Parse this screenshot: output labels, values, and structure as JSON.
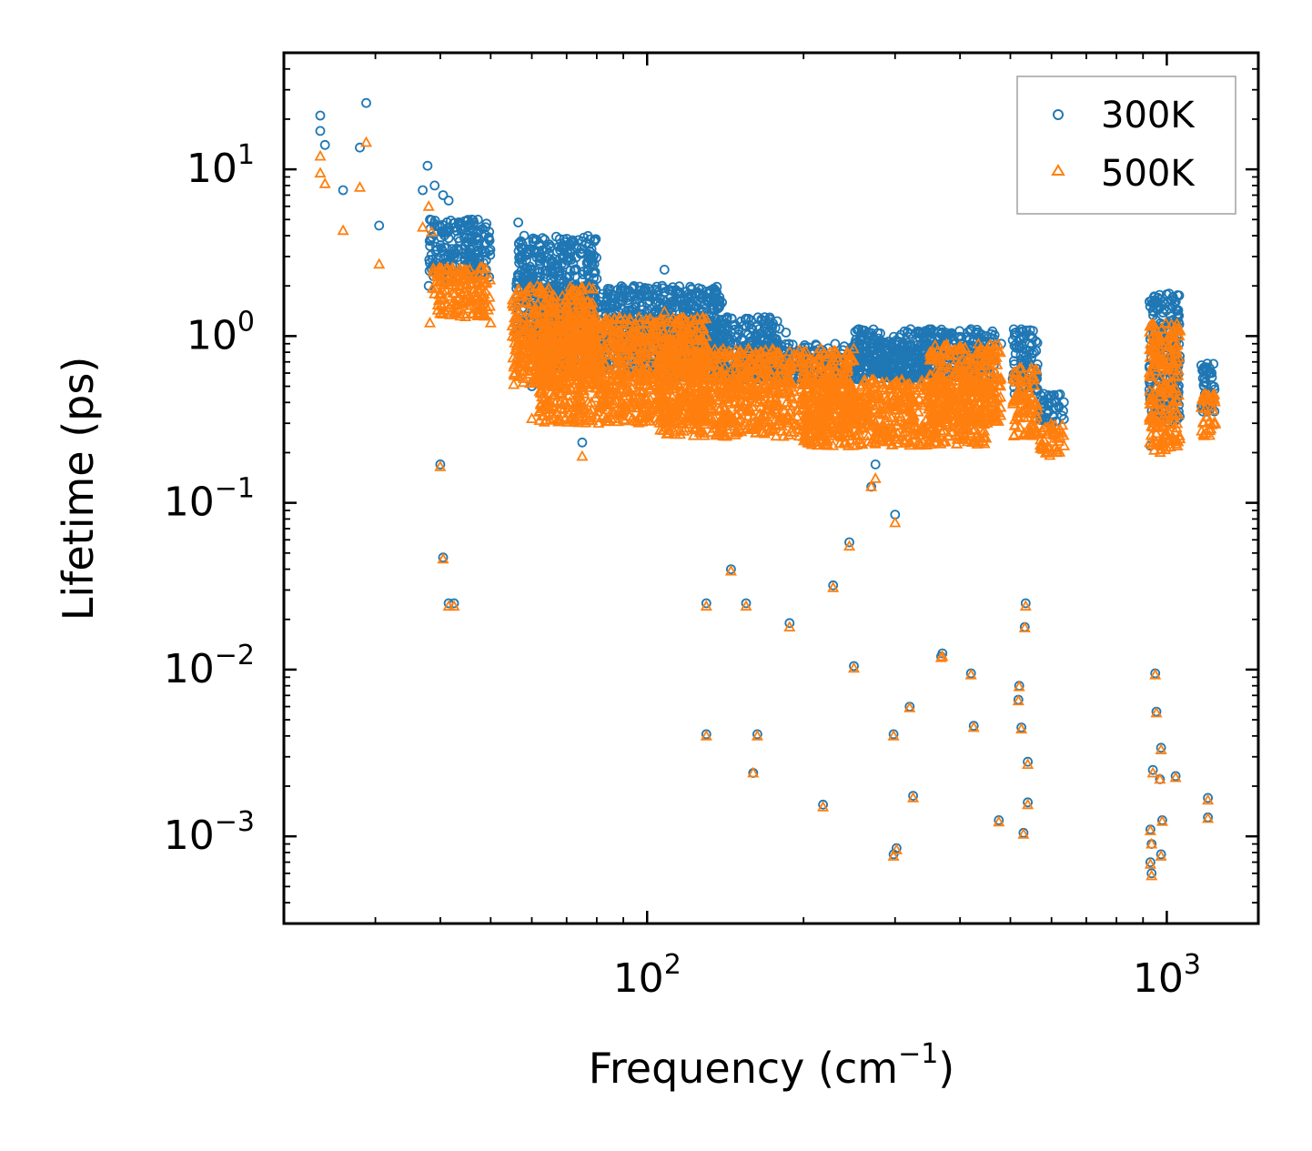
{
  "chart_data": {
    "type": "scatter",
    "x_scale": "log",
    "y_scale": "log",
    "xlim": [
      20,
      1500
    ],
    "ylim": [
      0.0003,
      50
    ],
    "xlabel": "Frequency (cm",
    "xlabel_sup": "−1",
    "xlabel_end": ")",
    "ylabel": "Lifetime (ps)",
    "xticks": [
      {
        "value": 100,
        "base": "10",
        "exp": "2"
      },
      {
        "value": 1000,
        "base": "10",
        "exp": "3"
      }
    ],
    "yticks": [
      {
        "value": 10,
        "base": "10",
        "exp": "1"
      },
      {
        "value": 1,
        "base": "10",
        "exp": "0"
      },
      {
        "value": 0.1,
        "base": "10",
        "exp": "−1"
      },
      {
        "value": 0.01,
        "base": "10",
        "exp": "−2"
      },
      {
        "value": 0.001,
        "base": "10",
        "exp": "−3"
      }
    ],
    "legend_position": "top-right",
    "series": [
      {
        "name": "300K",
        "marker": "circle",
        "color": "#1f77b4",
        "points": [
          [
            23.5,
            21
          ],
          [
            23.5,
            17
          ],
          [
            24.0,
            14
          ],
          [
            26.0,
            7.5
          ],
          [
            28.0,
            13.5
          ],
          [
            28.8,
            25
          ],
          [
            30.5,
            4.6
          ],
          [
            37.0,
            7.5
          ],
          [
            37.8,
            10.5
          ],
          [
            38.2,
            5.0
          ],
          [
            39.0,
            8.0
          ],
          [
            40.5,
            7.0
          ],
          [
            41.5,
            6.5
          ],
          [
            38.0,
            2.0
          ],
          [
            40.0,
            0.17
          ],
          [
            40.5,
            0.047
          ],
          [
            41.5,
            0.025
          ],
          [
            42.5,
            0.025
          ],
          [
            46.0,
            5.0
          ],
          [
            49.0,
            2.5
          ],
          [
            56.5,
            4.8
          ],
          [
            58.0,
            4.0
          ],
          [
            60.0,
            0.5
          ],
          [
            61.0,
            3.8
          ],
          [
            62.0,
            0.65
          ],
          [
            64.5,
            0.75
          ],
          [
            69.0,
            3.0
          ],
          [
            73.0,
            2.0
          ],
          [
            75.0,
            0.23
          ],
          [
            77.0,
            1.6
          ],
          [
            80.0,
            2.2
          ],
          [
            90.0,
            1.7
          ],
          [
            100.0,
            1.8
          ],
          [
            108.0,
            2.5
          ],
          [
            110.0,
            1.9
          ],
          [
            113.0,
            1.6
          ],
          [
            118.0,
            1.5
          ],
          [
            126.0,
            1.4
          ],
          [
            145.0,
            0.3
          ],
          [
            162.0,
            0.9
          ],
          [
            185.0,
            1.05
          ],
          [
            200.0,
            0.75
          ],
          [
            230.0,
            0.72
          ],
          [
            260.0,
            0.7
          ],
          [
            270.0,
            0.125
          ],
          [
            275.0,
            0.17
          ],
          [
            300.0,
            0.085
          ],
          [
            330.0,
            0.82
          ],
          [
            370.0,
            0.6
          ],
          [
            400.0,
            0.65
          ],
          [
            420.0,
            1.1
          ],
          [
            450.0,
            1.0
          ],
          [
            480.0,
            0.9
          ],
          [
            530.0,
            1.0
          ],
          [
            545.0,
            0.9
          ],
          [
            580.0,
            0.45
          ],
          [
            600.0,
            0.4
          ],
          [
            620.0,
            0.38
          ],
          [
            130.0,
            0.025
          ],
          [
            145.0,
            0.04
          ],
          [
            155.0,
            0.025
          ],
          [
            188.0,
            0.019
          ],
          [
            228.0,
            0.032
          ],
          [
            250.0,
            0.0105
          ],
          [
            245.0,
            0.058
          ],
          [
            130.0,
            0.0041
          ],
          [
            160.0,
            0.0024
          ],
          [
            163.0,
            0.0041
          ],
          [
            218.0,
            0.00155
          ],
          [
            298.0,
            0.0041
          ],
          [
            298.0,
            0.00078
          ],
          [
            302.0,
            0.00085
          ],
          [
            320.0,
            0.006
          ],
          [
            325.0,
            0.00175
          ],
          [
            370.0,
            0.0125
          ],
          [
            368.0,
            0.012
          ],
          [
            420.0,
            0.0095
          ],
          [
            425.0,
            0.0046
          ],
          [
            475.0,
            0.00125
          ],
          [
            520.0,
            0.008
          ],
          [
            518.0,
            0.0066
          ],
          [
            525.0,
            0.0045
          ],
          [
            535.0,
            0.025
          ],
          [
            533.0,
            0.018
          ],
          [
            540.0,
            0.0028
          ],
          [
            540.0,
            0.0016
          ],
          [
            530.0,
            0.00105
          ],
          [
            940.0,
            0.0025
          ],
          [
            950.0,
            0.0095
          ],
          [
            955.0,
            0.0056
          ],
          [
            930.0,
            0.0011
          ],
          [
            935.0,
            0.0009
          ],
          [
            930.0,
            0.0007
          ],
          [
            935.0,
            0.0006
          ],
          [
            975.0,
            0.0034
          ],
          [
            970.0,
            0.0022
          ],
          [
            980.0,
            0.00125
          ],
          [
            975.0,
            0.00078
          ],
          [
            1040.0,
            0.0023
          ],
          [
            1200.0,
            0.0017
          ],
          [
            1200.0,
            0.0013
          ],
          [
            930.0,
            0.22
          ],
          [
            960.0,
            1.6
          ],
          [
            1010.0,
            1.8
          ],
          [
            1190.0,
            0.65
          ],
          [
            1220.0,
            0.6
          ]
        ],
        "clusters": [
          {
            "x": [
              38.0,
              50.0
            ],
            "y": [
              2.2,
              5.0
            ]
          },
          {
            "x": [
              56.0,
              80.0
            ],
            "y": [
              1.0,
              4.0
            ]
          },
          {
            "x": [
              62.0,
              140.0
            ],
            "y": [
              0.6,
              2.0
            ]
          },
          {
            "x": [
              110.0,
              180.0
            ],
            "y": [
              0.55,
              1.3
            ]
          },
          {
            "x": [
              150.0,
              350.0
            ],
            "y": [
              0.55,
              0.9
            ]
          },
          {
            "x": [
              250.0,
              470.0
            ],
            "y": [
              0.55,
              1.1
            ]
          },
          {
            "x": [
              505.0,
              565.0
            ],
            "y": [
              0.45,
              1.1
            ]
          },
          {
            "x": [
              570.0,
              635.0
            ],
            "y": [
              0.3,
              0.45
            ]
          },
          {
            "x": [
              925.0,
              1060.0
            ],
            "y": [
              0.3,
              1.8
            ]
          },
          {
            "x": [
              1165.0,
              1240.0
            ],
            "y": [
              0.35,
              0.7
            ]
          }
        ]
      },
      {
        "name": "500K",
        "marker": "triangle",
        "color": "#ff7f0e",
        "points": [
          [
            23.5,
            12
          ],
          [
            23.5,
            9.5
          ],
          [
            24.0,
            8.2
          ],
          [
            26.0,
            4.3
          ],
          [
            28.0,
            7.8
          ],
          [
            28.8,
            14.5
          ],
          [
            30.5,
            2.7
          ],
          [
            37.0,
            4.5
          ],
          [
            38.0,
            6.0
          ],
          [
            38.5,
            4.2
          ],
          [
            38.2,
            1.2
          ],
          [
            40.0,
            0.165
          ],
          [
            40.5,
            0.046
          ],
          [
            41.5,
            0.024
          ],
          [
            42.5,
            0.024
          ],
          [
            49.0,
            1.5
          ],
          [
            50.0,
            1.2
          ],
          [
            56.0,
            1.6
          ],
          [
            60.0,
            0.32
          ],
          [
            62.0,
            0.35
          ],
          [
            64.0,
            0.38
          ],
          [
            75.0,
            0.19
          ],
          [
            73.0,
            1.0
          ],
          [
            90.0,
            1.1
          ],
          [
            100.0,
            1.2
          ],
          [
            108.0,
            1.4
          ],
          [
            300.0,
            0.076
          ],
          [
            270.0,
            0.125
          ],
          [
            275.0,
            0.14
          ],
          [
            130.0,
            0.024
          ],
          [
            145.0,
            0.039
          ],
          [
            155.0,
            0.024
          ],
          [
            188.0,
            0.018
          ],
          [
            228.0,
            0.031
          ],
          [
            250.0,
            0.0102
          ],
          [
            245.0,
            0.055
          ],
          [
            130.0,
            0.004
          ],
          [
            160.0,
            0.0024
          ],
          [
            163.0,
            0.004
          ],
          [
            218.0,
            0.0015
          ],
          [
            298.0,
            0.004
          ],
          [
            298.0,
            0.00076
          ],
          [
            302.0,
            0.00083
          ],
          [
            320.0,
            0.0059
          ],
          [
            325.0,
            0.0017
          ],
          [
            370.0,
            0.012
          ],
          [
            368.0,
            0.0118
          ],
          [
            420.0,
            0.0093
          ],
          [
            425.0,
            0.0045
          ],
          [
            475.0,
            0.00122
          ],
          [
            520.0,
            0.0079
          ],
          [
            518.0,
            0.0065
          ],
          [
            525.0,
            0.0044
          ],
          [
            535.0,
            0.024
          ],
          [
            533.0,
            0.0178
          ],
          [
            540.0,
            0.0027
          ],
          [
            540.0,
            0.00155
          ],
          [
            530.0,
            0.00103
          ],
          [
            940.0,
            0.0024
          ],
          [
            950.0,
            0.0093
          ],
          [
            955.0,
            0.0055
          ],
          [
            930.0,
            0.00108
          ],
          [
            935.0,
            0.0009
          ],
          [
            930.0,
            0.00068
          ],
          [
            935.0,
            0.00058
          ],
          [
            975.0,
            0.0033
          ],
          [
            970.0,
            0.0022
          ],
          [
            980.0,
            0.00123
          ],
          [
            975.0,
            0.00076
          ],
          [
            1040.0,
            0.00225
          ],
          [
            1200.0,
            0.00165
          ],
          [
            1200.0,
            0.00128
          ]
        ],
        "clusters": [
          {
            "x": [
              38.5,
              50.0
            ],
            "y": [
              1.3,
              2.6
            ]
          },
          {
            "x": [
              55.0,
              80.0
            ],
            "y": [
              0.5,
              2.0
            ]
          },
          {
            "x": [
              62.0,
              130.0
            ],
            "y": [
              0.3,
              1.3
            ]
          },
          {
            "x": [
              105.0,
              250.0
            ],
            "y": [
              0.25,
              0.85
            ]
          },
          {
            "x": [
              200.0,
              450.0
            ],
            "y": [
              0.22,
              0.55
            ]
          },
          {
            "x": [
              350.0,
              480.0
            ],
            "y": [
              0.3,
              0.9
            ]
          },
          {
            "x": [
              505.0,
              565.0
            ],
            "y": [
              0.25,
              0.65
            ]
          },
          {
            "x": [
              570.0,
              635.0
            ],
            "y": [
              0.19,
              0.3
            ]
          },
          {
            "x": [
              925.0,
              1060.0
            ],
            "y": [
              0.2,
              1.2
            ]
          },
          {
            "x": [
              1165.0,
              1240.0
            ],
            "y": [
              0.25,
              0.45
            ]
          }
        ]
      }
    ]
  }
}
